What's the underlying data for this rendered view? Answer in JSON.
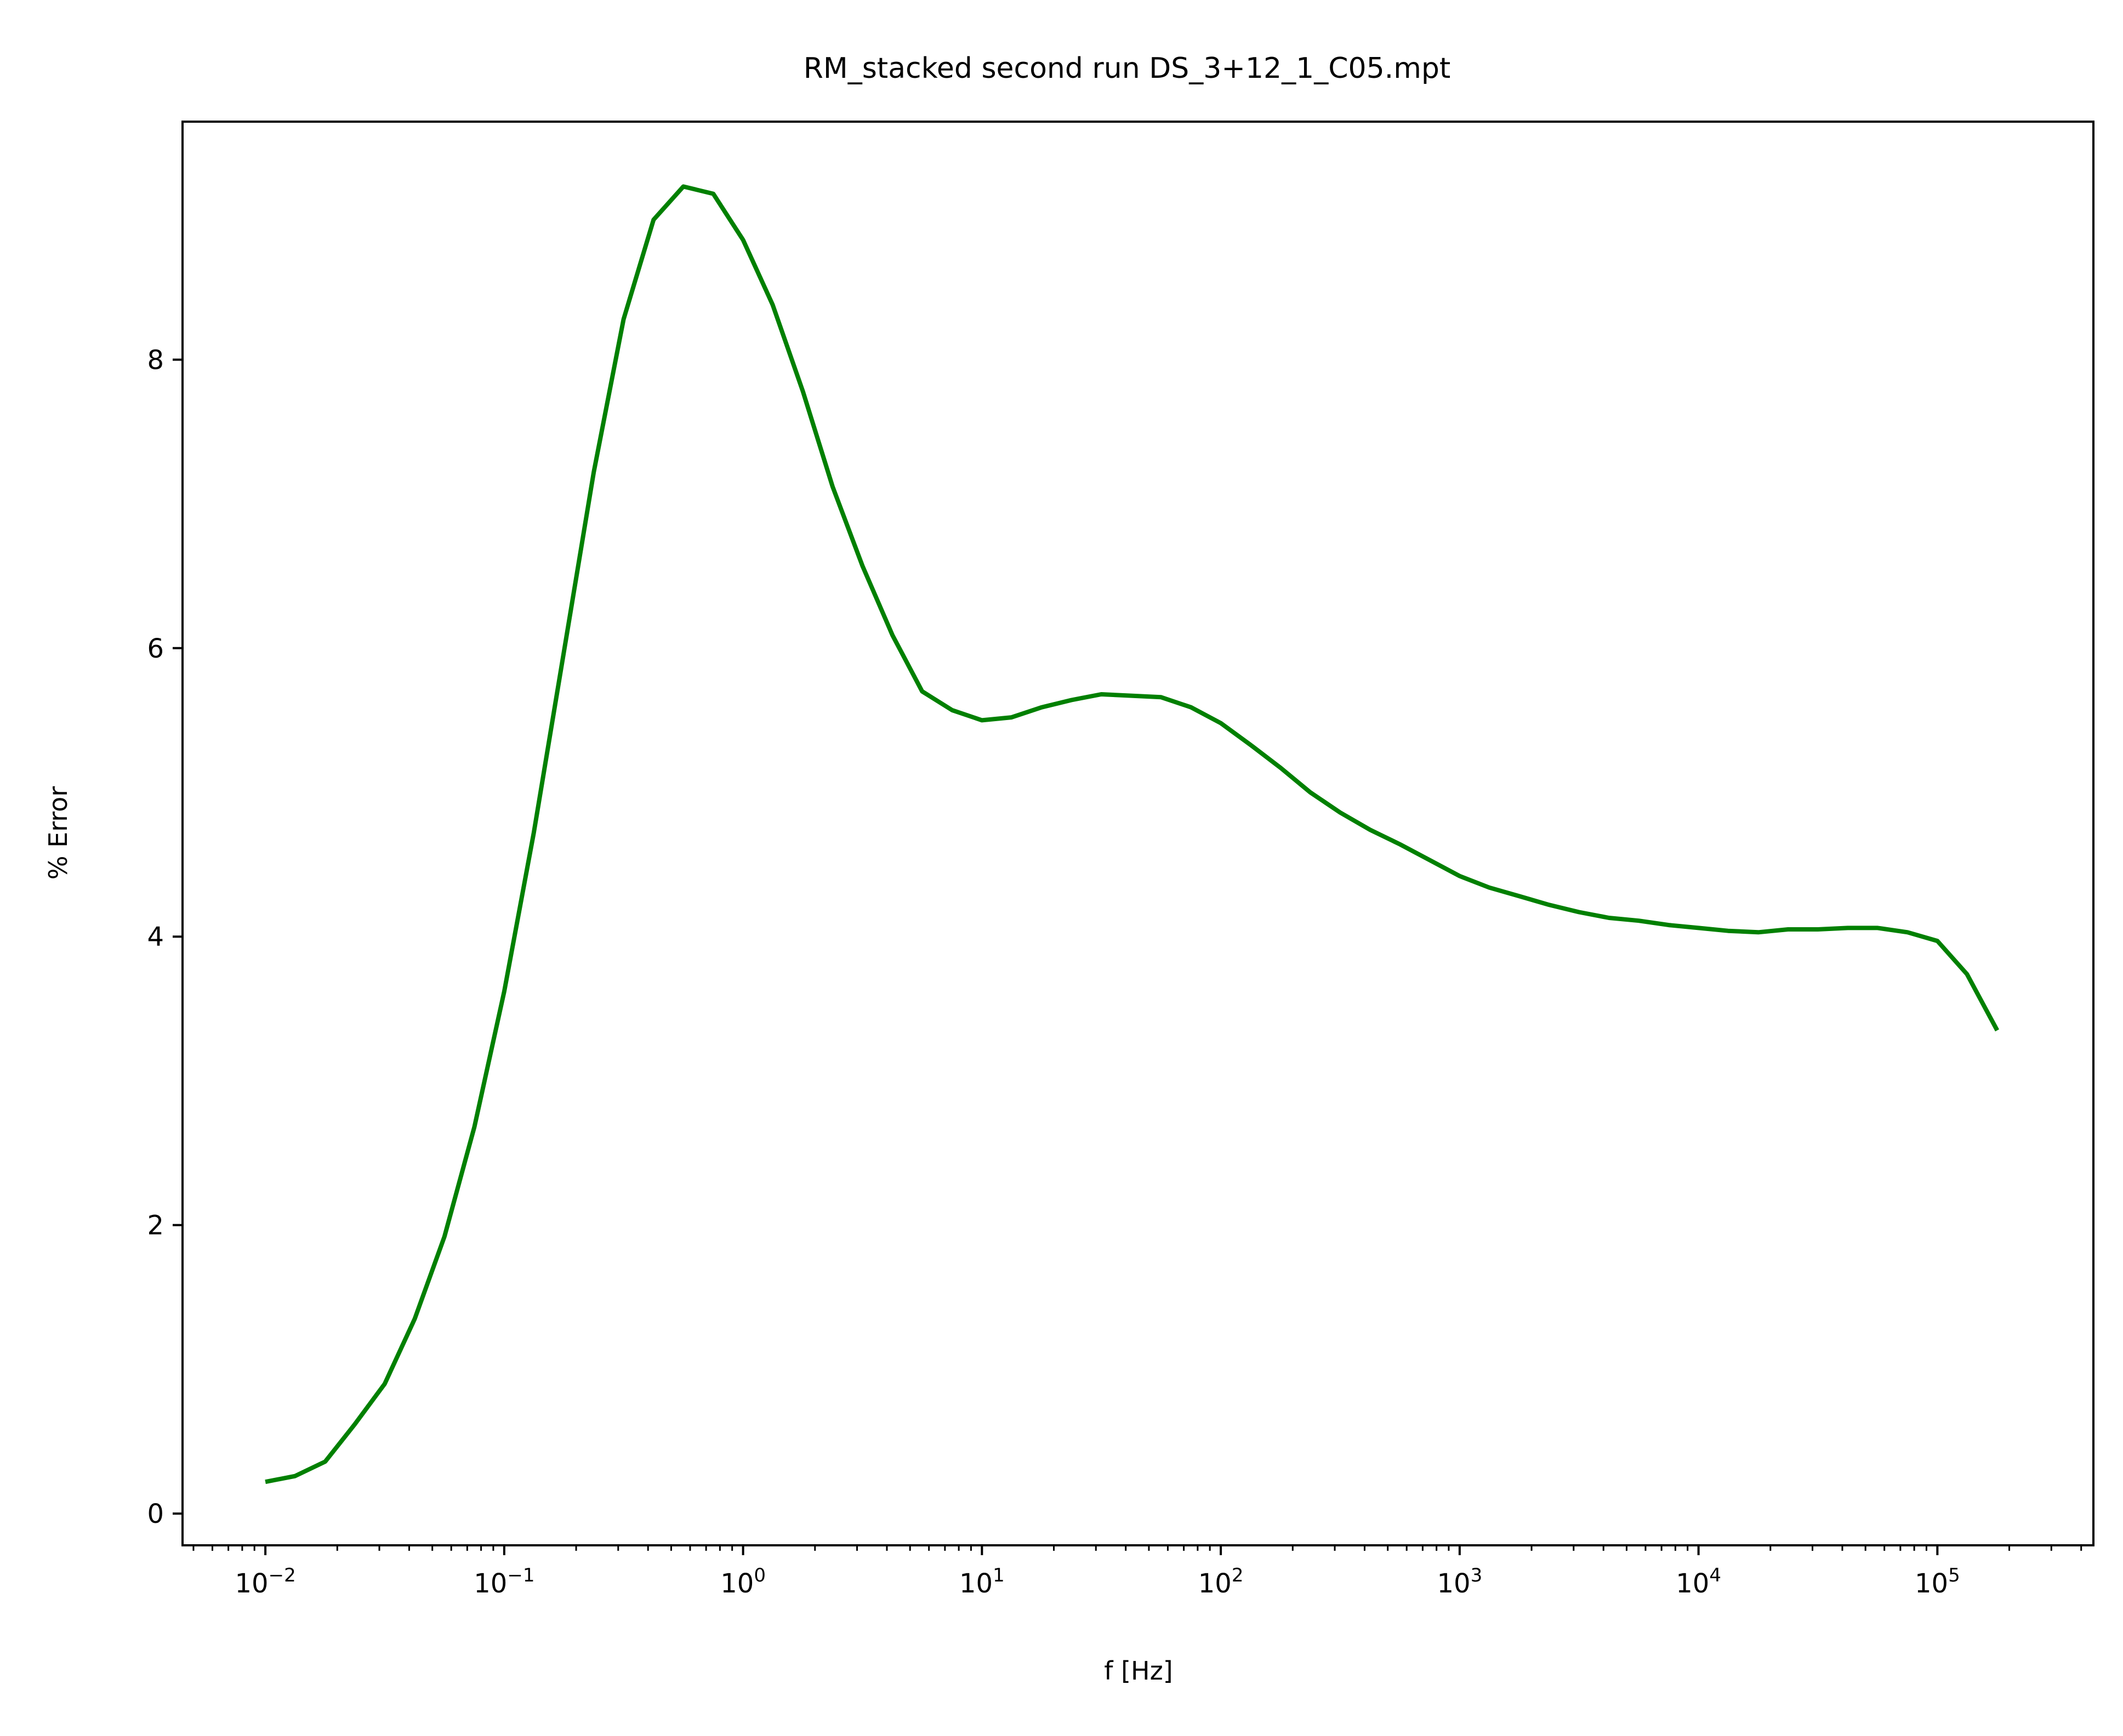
{
  "chart_data": {
    "type": "line",
    "title": "RM_stacked second run DS_3+12_1_C05.mpt",
    "xlabel": "f [Hz]",
    "ylabel": "% Error",
    "xscale": "log",
    "xlim": [
      0.0045,
      450000
    ],
    "ylim": [
      -0.22,
      9.65
    ],
    "xticks": [
      {
        "value": 0.01,
        "base": "10",
        "exp": "−2"
      },
      {
        "value": 0.1,
        "base": "10",
        "exp": "−1"
      },
      {
        "value": 1,
        "base": "10",
        "exp": "0"
      },
      {
        "value": 10,
        "base": "10",
        "exp": "1"
      },
      {
        "value": 100,
        "base": "10",
        "exp": "2"
      },
      {
        "value": 1000,
        "base": "10",
        "exp": "3"
      },
      {
        "value": 10000,
        "base": "10",
        "exp": "4"
      },
      {
        "value": 100000,
        "base": "10",
        "exp": "5"
      }
    ],
    "yticks": [
      {
        "value": 0,
        "label": "0"
      },
      {
        "value": 2,
        "label": "2"
      },
      {
        "value": 4,
        "label": "4"
      },
      {
        "value": 6,
        "label": "6"
      },
      {
        "value": 8,
        "label": "8"
      }
    ],
    "grid": false,
    "series": [
      {
        "color": "#008000",
        "points": [
          [
            0.01,
            0.22
          ],
          [
            0.0133,
            0.26
          ],
          [
            0.0178,
            0.36
          ],
          [
            0.0237,
            0.62
          ],
          [
            0.0316,
            0.9
          ],
          [
            0.0422,
            1.35
          ],
          [
            0.0562,
            1.92
          ],
          [
            0.075,
            2.68
          ],
          [
            0.1,
            3.62
          ],
          [
            0.133,
            4.72
          ],
          [
            0.178,
            5.98
          ],
          [
            0.237,
            7.22
          ],
          [
            0.316,
            8.28
          ],
          [
            0.422,
            8.97
          ],
          [
            0.562,
            9.2
          ],
          [
            0.75,
            9.15
          ],
          [
            1.0,
            8.83
          ],
          [
            1.33,
            8.38
          ],
          [
            1.78,
            7.78
          ],
          [
            2.37,
            7.12
          ],
          [
            3.16,
            6.57
          ],
          [
            4.22,
            6.09
          ],
          [
            5.62,
            5.7
          ],
          [
            7.5,
            5.57
          ],
          [
            10.0,
            5.5
          ],
          [
            13.3,
            5.52
          ],
          [
            17.8,
            5.59
          ],
          [
            23.7,
            5.64
          ],
          [
            31.6,
            5.68
          ],
          [
            42.2,
            5.67
          ],
          [
            56.2,
            5.66
          ],
          [
            75.0,
            5.59
          ],
          [
            100,
            5.48
          ],
          [
            133,
            5.33
          ],
          [
            178,
            5.17
          ],
          [
            237,
            5.0
          ],
          [
            316,
            4.86
          ],
          [
            422,
            4.74
          ],
          [
            562,
            4.64
          ],
          [
            750,
            4.53
          ],
          [
            1000,
            4.42
          ],
          [
            1330,
            4.34
          ],
          [
            1780,
            4.28
          ],
          [
            2370,
            4.22
          ],
          [
            3160,
            4.17
          ],
          [
            4220,
            4.13
          ],
          [
            5620,
            4.11
          ],
          [
            7500,
            4.08
          ],
          [
            10000,
            4.06
          ],
          [
            13300,
            4.04
          ],
          [
            17800,
            4.03
          ],
          [
            23700,
            4.05
          ],
          [
            31600,
            4.05
          ],
          [
            42200,
            4.06
          ],
          [
            56200,
            4.06
          ],
          [
            75000,
            4.03
          ],
          [
            100000,
            3.97
          ],
          [
            133000,
            3.74
          ],
          [
            178000,
            3.35
          ]
        ]
      }
    ]
  }
}
